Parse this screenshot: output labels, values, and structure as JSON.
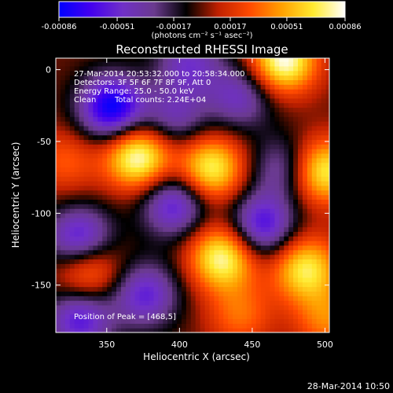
{
  "chart_data": {
    "type": "heatmap",
    "title": "Reconstructed RHESSI Image",
    "xlabel": "Heliocentric X (arcsec)",
    "ylabel": "Heliocentric Y (arcsec)",
    "xlim": [
      315,
      503
    ],
    "ylim": [
      -183,
      8
    ],
    "x_ticks": [
      350,
      400,
      450,
      500
    ],
    "y_ticks": [
      0,
      -50,
      -100,
      -150
    ],
    "colorbar": {
      "ticks": [
        "-0.00086",
        "-0.00051",
        "-0.00017",
        "0.00017",
        "0.00051",
        "0.00086"
      ],
      "range": [
        -0.00086,
        0.00086
      ],
      "unit_label": "(photons cm⁻² s⁻¹ asec⁻²)",
      "colormap": [
        "#0000ff",
        "#4400ee",
        "#7030c8",
        "#6a3a8e",
        "#000000",
        "#c02000",
        "#ff4a00",
        "#ffa000",
        "#ffea30",
        "#ffffff"
      ]
    },
    "annotations": {
      "time_range": "27-Mar-2014 20:53:32.000 to 20:58:34.000",
      "detectors": "Detectors: 3F 5F 6F 7F 8F 9F, Att 0",
      "energy": "Energy Range: 25.0 - 50.0 keV",
      "clean_label": "Clean",
      "total_counts": "Total counts: 2.24E+04",
      "peak": "Position of Peak = [468,5]"
    },
    "blobs": [
      {
        "x": 352,
        "y": -28,
        "value": -0.00086
      },
      {
        "x": 330,
        "y": -120,
        "value": -0.0007
      },
      {
        "x": 330,
        "y": -175,
        "value": -0.0006
      },
      {
        "x": 455,
        "y": -110,
        "value": -0.00065
      },
      {
        "x": 395,
        "y": -95,
        "value": -0.0006
      },
      {
        "x": 440,
        "y": -20,
        "value": -0.00045
      },
      {
        "x": 395,
        "y": -35,
        "value": -0.0004
      },
      {
        "x": 470,
        "y": -70,
        "value": -0.0004
      },
      {
        "x": 375,
        "y": -158,
        "value": -0.00055
      },
      {
        "x": 405,
        "y": 3,
        "value": -0.00045
      },
      {
        "x": 370,
        "y": -62,
        "value": 0.00086
      },
      {
        "x": 420,
        "y": -70,
        "value": 0.00075
      },
      {
        "x": 470,
        "y": 5,
        "value": 0.00086
      },
      {
        "x": 497,
        "y": -72,
        "value": 0.00075
      },
      {
        "x": 428,
        "y": -132,
        "value": 0.0008
      },
      {
        "x": 485,
        "y": -140,
        "value": 0.0007
      },
      {
        "x": 335,
        "y": -140,
        "value": 0.00055
      },
      {
        "x": 440,
        "y": -172,
        "value": 0.00035
      },
      {
        "x": 500,
        "y": -175,
        "value": 0.0004
      },
      {
        "x": 320,
        "y": -65,
        "value": 0.0003
      }
    ]
  },
  "footer": {
    "timestamp": "28-Mar-2014 10:50"
  }
}
